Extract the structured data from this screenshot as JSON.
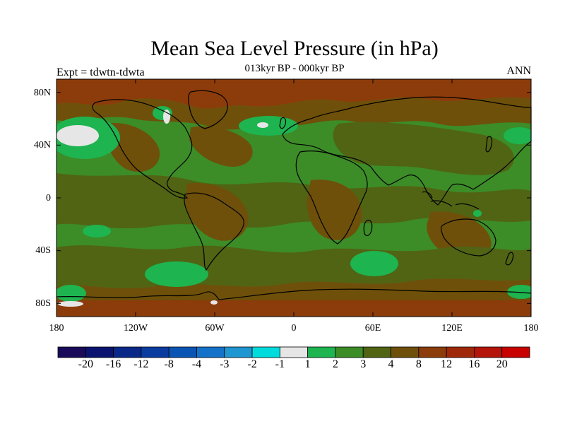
{
  "title": "Mean Sea Level Pressure (in hPa)",
  "subtitle": "013kyr BP - 000kyr BP",
  "experiment": "Expt = tdwtn-tdwta",
  "season": "ANN",
  "lat_labels": [
    "80N",
    "40N",
    "0",
    "40S",
    "80S"
  ],
  "lon_labels": [
    "180",
    "120W",
    "60W",
    "0",
    "60E",
    "120E",
    "180"
  ],
  "colorbar": {
    "labels": [
      "-20",
      "-16",
      "-12",
      "-8",
      "-4",
      "-3",
      "-2",
      "-1",
      "1",
      "2",
      "3",
      "4",
      "8",
      "12",
      "16",
      "20"
    ],
    "colors": [
      "#1a0a5a",
      "#0a1470",
      "#0a2888",
      "#0a3ca0",
      "#0a55b4",
      "#1472c8",
      "#1e96d2",
      "#00dcdc",
      "#e6e6e6",
      "#1eb450",
      "#3c8c28",
      "#506414",
      "#6e500a",
      "#8c3c0a",
      "#a0280a",
      "#b4140a",
      "#c80000"
    ]
  },
  "map_colors": {
    "base": "#3c8c28",
    "neutral": "#e6e6e6",
    "light_green": "#1eb450",
    "olive": "#506414",
    "brown": "#6e500a",
    "rust": "#8c3c0a",
    "coast": "#000000"
  }
}
